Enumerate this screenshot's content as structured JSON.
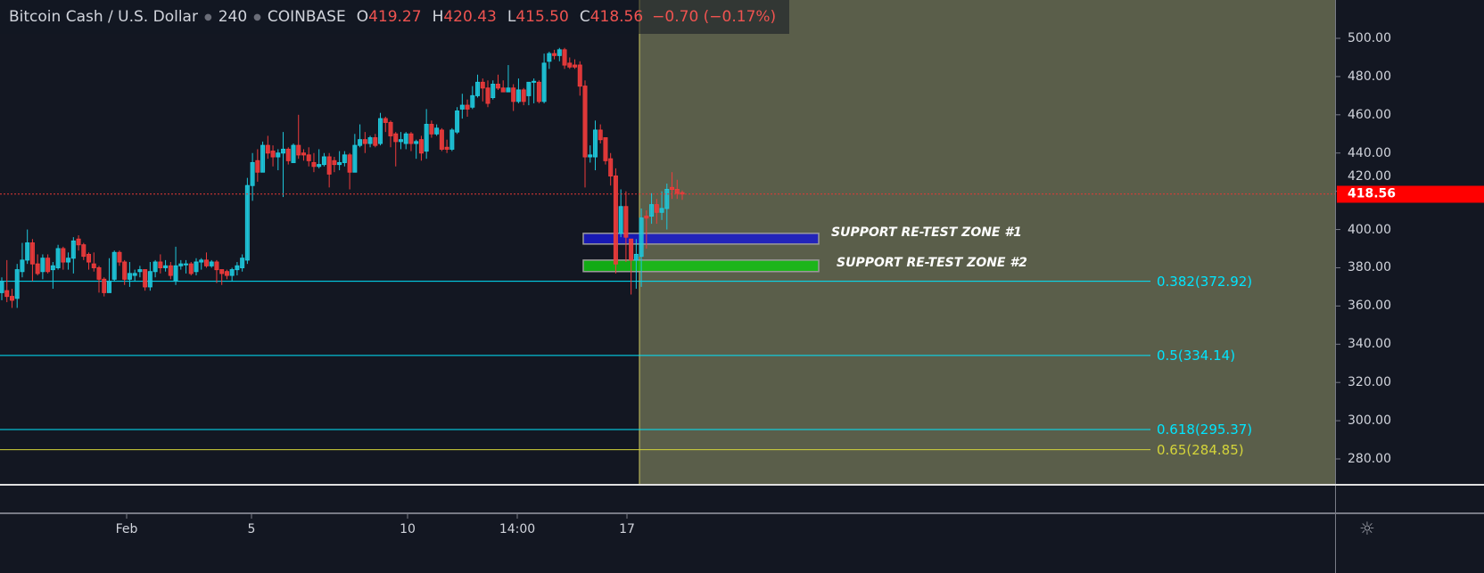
{
  "header": {
    "symbol": "Bitcoin Cash / U.S. Dollar",
    "interval": "240",
    "exchange": "COINBASE",
    "open_key": "O",
    "open": "419.27",
    "high_key": "H",
    "high": "420.43",
    "low_key": "L",
    "low": "415.50",
    "close_key": "C",
    "close": "418.56",
    "change": "−0.70 (−0.17%)"
  },
  "price_axis": {
    "ticks": [
      "500.00",
      "480.00",
      "460.00",
      "440.00",
      "420.00",
      "400.00",
      "380.00",
      "360.00",
      "340.00",
      "320.00",
      "300.00",
      "280.00"
    ],
    "current_price": "418.56"
  },
  "time_axis": {
    "ticks": [
      "Feb",
      "5",
      "10",
      "14:00",
      "17"
    ]
  },
  "fib_levels": [
    {
      "label": "0.382(372.92)",
      "price": 372.92,
      "color": "#00e5ff"
    },
    {
      "label": "0.5(334.14)",
      "price": 334.14,
      "color": "#00e5ff"
    },
    {
      "label": "0.618(295.37)",
      "price": 295.37,
      "color": "#00e5ff"
    },
    {
      "label": "0.65(284.85)",
      "price": 284.85,
      "color": "#d4d43a"
    }
  ],
  "zones": [
    {
      "label": "SUPPORT RE-TEST ZONE #1",
      "low": 392.4,
      "high": 398,
      "color": "#1a1acc"
    },
    {
      "label": "SUPPORT RE-TEST ZONE #2",
      "low": 378,
      "high": 384,
      "color": "#13c413"
    }
  ],
  "colors": {
    "up": "#1ec8dc",
    "down": "#ef3b3b",
    "background": "#131722",
    "highlight": "#5a5e4a",
    "last_price": "#ff0000"
  },
  "chart_data": {
    "type": "candlestick",
    "ylim": [
      265,
      515
    ],
    "candles_ohlc": [
      [
        367,
        375,
        363,
        373
      ],
      [
        368,
        384,
        362,
        365
      ],
      [
        365,
        369,
        359,
        363
      ],
      [
        364,
        382,
        359,
        379
      ],
      [
        378,
        393,
        375,
        384
      ],
      [
        384,
        400,
        382,
        393
      ],
      [
        393,
        395,
        373,
        382
      ],
      [
        382,
        387,
        376,
        377
      ],
      [
        378,
        387,
        374,
        385
      ],
      [
        385,
        387,
        377,
        378
      ],
      [
        379,
        383,
        369,
        381
      ],
      [
        380,
        392,
        379,
        390
      ],
      [
        390,
        391,
        379,
        383
      ],
      [
        383,
        388,
        379,
        385
      ],
      [
        385,
        396,
        377,
        394
      ],
      [
        395,
        397,
        389,
        392
      ],
      [
        392,
        393,
        384,
        386
      ],
      [
        387,
        388,
        379,
        383
      ],
      [
        382,
        388,
        378,
        380
      ],
      [
        380,
        381,
        367,
        374
      ],
      [
        374,
        375,
        365,
        367
      ],
      [
        367,
        385,
        367,
        373
      ],
      [
        374,
        389,
        373,
        388
      ],
      [
        388,
        389,
        381,
        383
      ],
      [
        383,
        384,
        371,
        374
      ],
      [
        374,
        383,
        370,
        377
      ],
      [
        376,
        379,
        373,
        377
      ],
      [
        378,
        381,
        375,
        379
      ],
      [
        379,
        379,
        368,
        370
      ],
      [
        370,
        383,
        368,
        378
      ],
      [
        378,
        384,
        375,
        383
      ],
      [
        383,
        387,
        377,
        380
      ],
      [
        380,
        384,
        378,
        381
      ],
      [
        381,
        383,
        374,
        376
      ],
      [
        373,
        391,
        371,
        381
      ],
      [
        381,
        384,
        379,
        382
      ],
      [
        382,
        384,
        377,
        382
      ],
      [
        382,
        383,
        376,
        377
      ],
      [
        378,
        385,
        376,
        383
      ],
      [
        383,
        385,
        379,
        384
      ],
      [
        384,
        388,
        380,
        381
      ],
      [
        381,
        384,
        380,
        383
      ],
      [
        383,
        384,
        372,
        379
      ],
      [
        379,
        379,
        371,
        377
      ],
      [
        378,
        379,
        374,
        376
      ],
      [
        376,
        380,
        373,
        379
      ],
      [
        379,
        383,
        376,
        381
      ],
      [
        380,
        387,
        378,
        385
      ],
      [
        384,
        427,
        382,
        423
      ],
      [
        423,
        440,
        415,
        435
      ],
      [
        436,
        442,
        425,
        430
      ],
      [
        430,
        446,
        430,
        444
      ],
      [
        444,
        449,
        437,
        440
      ],
      [
        441,
        444,
        433,
        438
      ],
      [
        438,
        442,
        431,
        440
      ],
      [
        440,
        451,
        417,
        442
      ],
      [
        442,
        443,
        434,
        436
      ],
      [
        435,
        445,
        435,
        444
      ],
      [
        444,
        460,
        437,
        439
      ],
      [
        440,
        442,
        436,
        439
      ],
      [
        439,
        443,
        433,
        436
      ],
      [
        435,
        440,
        430,
        433
      ],
      [
        433,
        442,
        432,
        434
      ],
      [
        434,
        440,
        433,
        438
      ],
      [
        438,
        440,
        422,
        429
      ],
      [
        436,
        438,
        430,
        434
      ],
      [
        434,
        441,
        431,
        435
      ],
      [
        435,
        441,
        433,
        439
      ],
      [
        439,
        440,
        421,
        430
      ],
      [
        430,
        450,
        430,
        444
      ],
      [
        444,
        455,
        443,
        447
      ],
      [
        447,
        451,
        440,
        445
      ],
      [
        445,
        449,
        443,
        448
      ],
      [
        448,
        450,
        443,
        444
      ],
      [
        445,
        461,
        444,
        458
      ],
      [
        458,
        459,
        451,
        456
      ],
      [
        456,
        457,
        443,
        449
      ],
      [
        450,
        451,
        433,
        446
      ],
      [
        446,
        451,
        442,
        447
      ],
      [
        445,
        451,
        442,
        450
      ],
      [
        450,
        451,
        441,
        445
      ],
      [
        445,
        447,
        437,
        446
      ],
      [
        447,
        449,
        436,
        440
      ],
      [
        441,
        463,
        437,
        455
      ],
      [
        455,
        457,
        448,
        450
      ],
      [
        450,
        455,
        449,
        453
      ],
      [
        452,
        453,
        441,
        442
      ],
      [
        443,
        447,
        440,
        442
      ],
      [
        442,
        453,
        441,
        452
      ],
      [
        451,
        464,
        450,
        462
      ],
      [
        463,
        471,
        458,
        465
      ],
      [
        465,
        468,
        459,
        463
      ],
      [
        464,
        475,
        463,
        470
      ],
      [
        470,
        481,
        469,
        477
      ],
      [
        477,
        479,
        467,
        474
      ],
      [
        474,
        478,
        464,
        466
      ],
      [
        469,
        478,
        468,
        476
      ],
      [
        476,
        481,
        473,
        474
      ],
      [
        474,
        478,
        472,
        472
      ],
      [
        472,
        486,
        472,
        474
      ],
      [
        474,
        476,
        462,
        467
      ],
      [
        467,
        479,
        466,
        473
      ],
      [
        473,
        474,
        465,
        467
      ],
      [
        470,
        477,
        465,
        477
      ],
      [
        477,
        479,
        466,
        477.5
      ],
      [
        477,
        478,
        466,
        467
      ],
      [
        467,
        492,
        466,
        487
      ],
      [
        488,
        493,
        484,
        492
      ],
      [
        492,
        494,
        489,
        491
      ],
      [
        491,
        495,
        488,
        494
      ],
      [
        494,
        495,
        484,
        486
      ],
      [
        487,
        490,
        484,
        485
      ],
      [
        486,
        489,
        484,
        485
      ],
      [
        486,
        488,
        470,
        475
      ],
      [
        475,
        478,
        422,
        438
      ],
      [
        438,
        444,
        435,
        439
      ],
      [
        438,
        457,
        431,
        452
      ],
      [
        452,
        455,
        445,
        447
      ],
      [
        448,
        448,
        434,
        436
      ],
      [
        437,
        440,
        423,
        428
      ],
      [
        428,
        432,
        377,
        382
      ],
      [
        398,
        421,
        396,
        412
      ],
      [
        412,
        420,
        383,
        396
      ],
      [
        395,
        395,
        366,
        384
      ],
      [
        384,
        395,
        369,
        387
      ],
      [
        386,
        411,
        370,
        406
      ],
      [
        407,
        410,
        390,
        406
      ],
      [
        407,
        419,
        403,
        413
      ],
      [
        413,
        416,
        403,
        409
      ],
      [
        409,
        420,
        405,
        411
      ],
      [
        411,
        424,
        400,
        421
      ],
      [
        422,
        430,
        416,
        421
      ],
      [
        421,
        426,
        416,
        419
      ],
      [
        419.27,
        420.43,
        415.5,
        418.56
      ]
    ]
  }
}
